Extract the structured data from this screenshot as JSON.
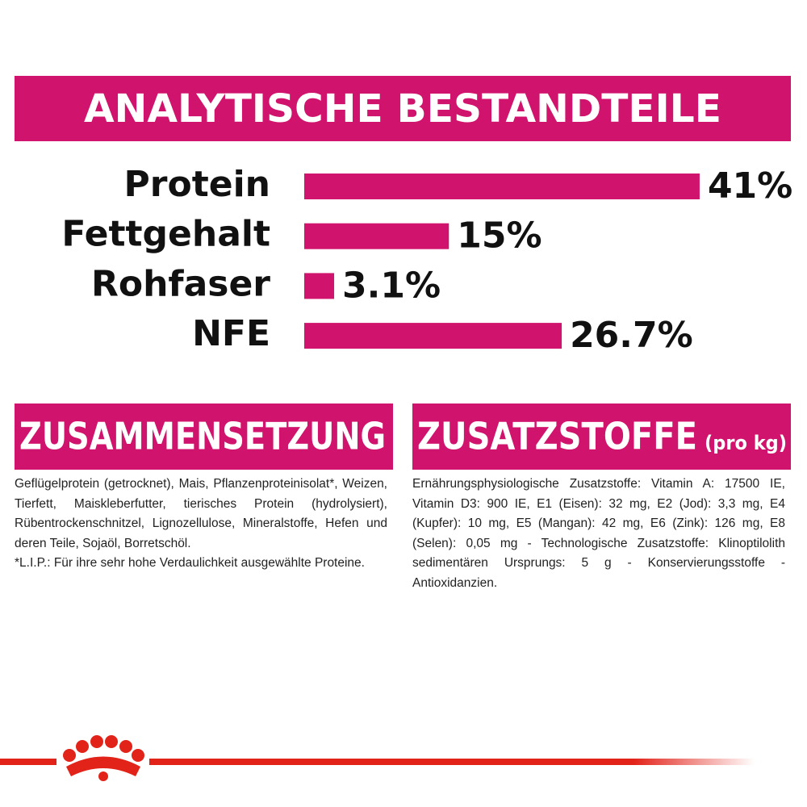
{
  "chart_data": {
    "type": "bar",
    "title": "ANALYTISCHE BESTANDTEILE",
    "categories": [
      "Protein",
      "Fettgehalt",
      "Rohfaser",
      "NFE"
    ],
    "values": [
      41,
      15,
      3.1,
      26.7
    ],
    "value_labels": [
      "41%",
      "15%",
      "3.1%",
      "26.7%"
    ],
    "color": "#d0136c"
  },
  "composition": {
    "title": "ZUSAMMENSETZUNG",
    "text": "Geflügelprotein (getrocknet), Mais, Pflanzenproteinisolat*, Weizen, Tierfett, Maiskleberfutter, tierisches Protein (hydrolysiert), Rübentrockenschnitzel, Lignozellulose, Mineralstoffe, Hefen und deren Teile, Sojaöl, Borretschöl.",
    "note": "*L.I.P.: Für ihre sehr hohe Verdaulichkeit ausgewählte Proteine."
  },
  "additives": {
    "title": "ZUSATZSTOFFE",
    "subtitle": "(pro kg)",
    "text": "Ernährungsphysiologische Zusatzstoffe: Vitamin A: 17500 IE, Vitamin D3: 900 IE, E1 (Eisen): 32 mg, E2 (Jod): 3,3 mg, E4 (Kupfer): 10 mg, E5 (Mangan): 42 mg, E6 (Zink): 126 mg, E8 (Selen): 0,05 mg - Technologische Zusatzstoffe: Klinoptilolith sedimentären Ursprungs: 5 g - Konservierungsstoffe - Antioxidanzien."
  }
}
